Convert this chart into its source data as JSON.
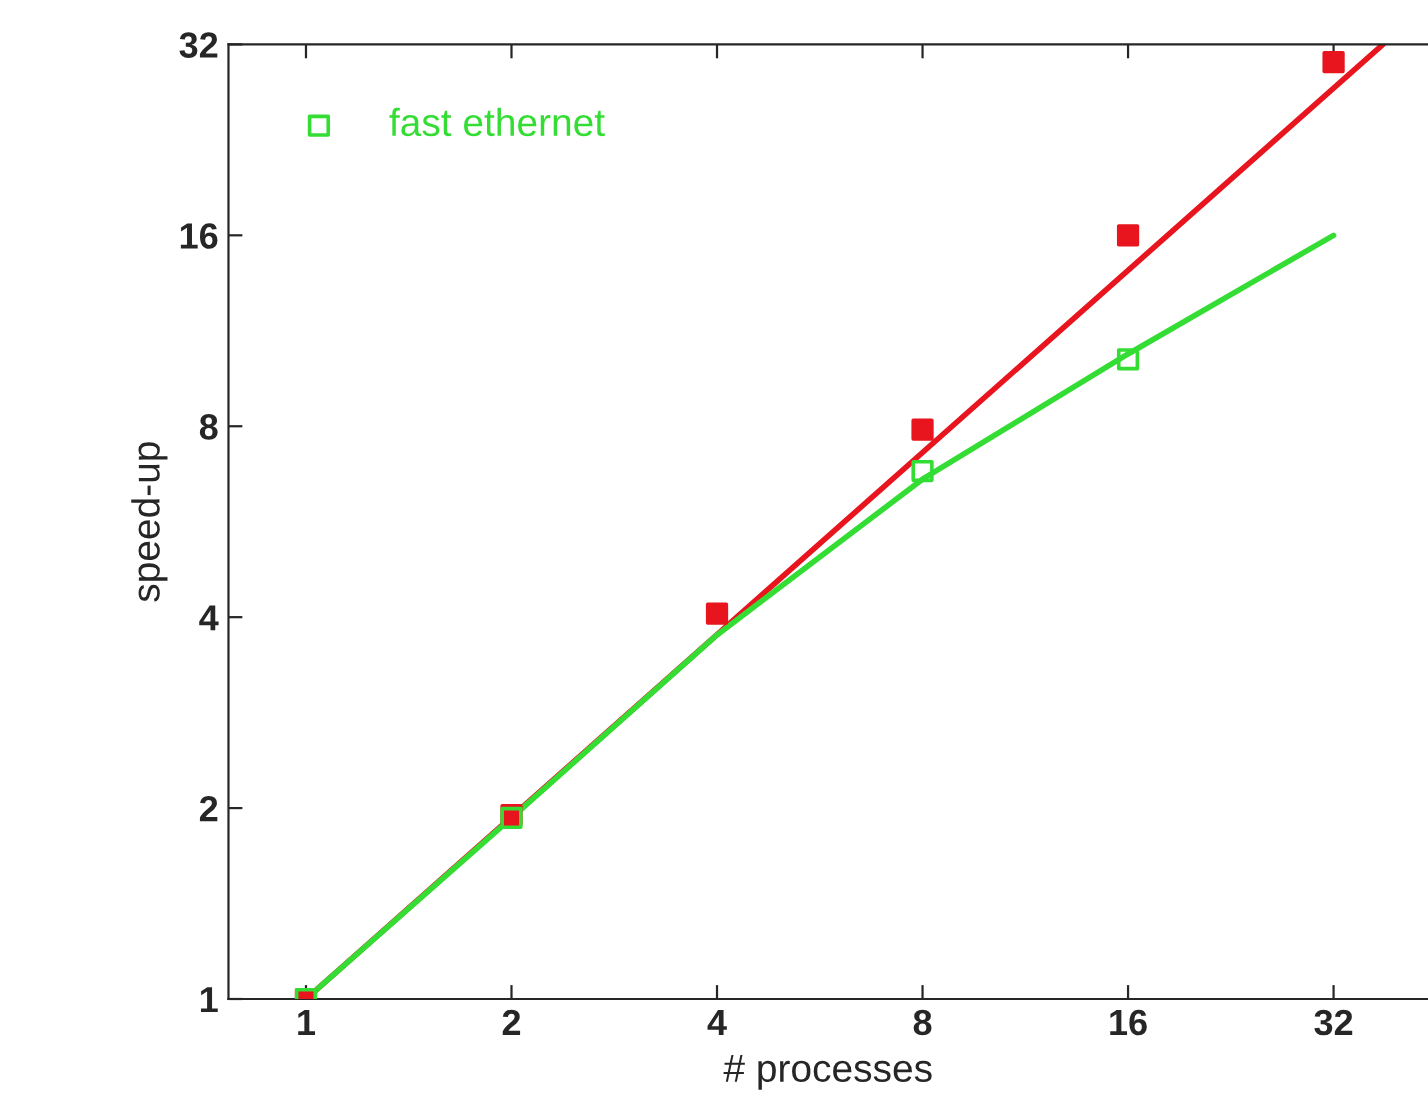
{
  "chart_data": {
    "type": "scatter",
    "xlabel": "# processes",
    "ylabel": "speed-up",
    "log": "xy",
    "x": [
      1,
      2,
      4,
      8,
      16,
      32
    ],
    "series": [
      {
        "color": "#e8141e",
        "values": [
          1,
          1.95,
          4.05,
          7.9,
          16,
          30
        ],
        "marker": "square"
      },
      {
        "name": "fast ethernet",
        "color": "#33dd33",
        "values": [
          1,
          1.93,
          null,
          6.8,
          10.2,
          null
        ],
        "marker": "square"
      },
      {
        "type": "line",
        "color": "#e8141e",
        "x": [
          1,
          37.8
        ],
        "values": [
          1,
          32
        ]
      },
      {
        "type": "line",
        "color": "#33dd33",
        "x": [
          1,
          2,
          4,
          8,
          16,
          32
        ],
        "values": [
          1,
          1.93,
          3.75,
          6.6,
          10.4,
          16
        ]
      }
    ],
    "xlim": [
      0.77,
      44
    ],
    "ylim": [
      1,
      32
    ],
    "xticks": [
      1,
      2,
      4,
      8,
      16,
      32
    ],
    "yticks": [
      1,
      2,
      4,
      8,
      16,
      32
    ],
    "grid": false,
    "legend": "top left"
  }
}
